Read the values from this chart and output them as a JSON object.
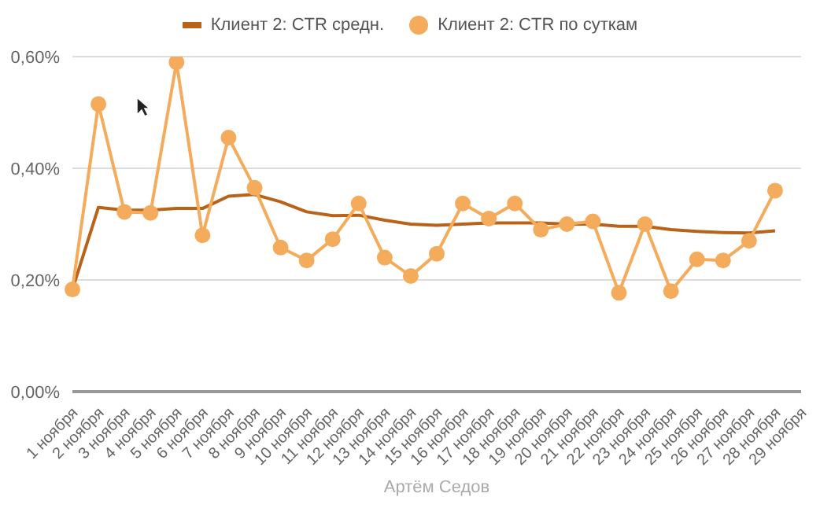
{
  "chart_data": {
    "type": "line",
    "xlabel": "Артём Седов",
    "categories": [
      "1 ноября",
      "2 ноября",
      "3 ноября",
      "4 ноября",
      "5 ноября",
      "6 ноября",
      "7 ноября",
      "8 ноября",
      "9 ноября",
      "10 ноября",
      "11 ноября",
      "12 ноября",
      "13 ноября",
      "14 ноября",
      "15 ноября",
      "16 ноября",
      "17 ноября",
      "18 ноября",
      "19 ноября",
      "20 ноября",
      "21 ноября",
      "22 ноября",
      "23 ноября",
      "24 ноября",
      "25 ноября",
      "26 ноября",
      "27 ноября",
      "28 ноября",
      "29 ноября"
    ],
    "series": [
      {
        "name": "Клиент 2: CTR средн.",
        "marker": "none",
        "color": "#b8621a",
        "values": [
          0.183,
          0.33,
          0.325,
          0.325,
          0.328,
          0.328,
          0.35,
          0.353,
          0.34,
          0.322,
          0.315,
          0.316,
          0.307,
          0.3,
          0.298,
          0.3,
          0.302,
          0.302,
          0.302,
          0.3,
          0.3,
          0.296,
          0.296,
          0.29,
          0.287,
          0.285,
          0.284,
          0.288,
          null
        ]
      },
      {
        "name": "Клиент 2: CTR по суткам",
        "marker": "circle",
        "color": "#f4ac5c",
        "values": [
          0.183,
          0.515,
          0.322,
          0.32,
          0.59,
          0.28,
          0.455,
          0.365,
          0.258,
          0.235,
          0.273,
          0.337,
          0.24,
          0.207,
          0.247,
          0.337,
          0.31,
          0.337,
          0.29,
          0.3,
          0.305,
          0.177,
          0.3,
          0.18,
          0.237,
          0.235,
          0.27,
          0.36,
          null
        ]
      }
    ],
    "ylim": [
      0,
      0.6
    ],
    "yticks": [
      {
        "value": 0,
        "label": "0,00%"
      },
      {
        "value": 0.2,
        "label": "0,20%"
      },
      {
        "value": 0.4,
        "label": "0,40%"
      },
      {
        "value": 0.6,
        "label": "0,60%"
      }
    ],
    "grid": "y",
    "legend": "top"
  }
}
